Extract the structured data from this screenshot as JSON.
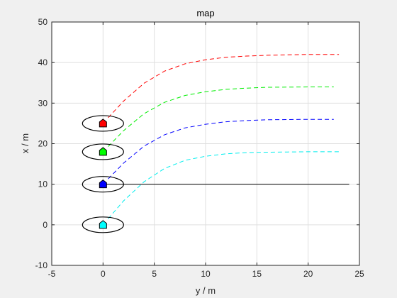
{
  "chart_data": {
    "type": "line",
    "title": "map",
    "xlabel": "y / m",
    "ylabel": "x / m",
    "xlim": [
      -5,
      25
    ],
    "ylim": [
      -10,
      50
    ],
    "xticks": [
      -5,
      0,
      5,
      10,
      15,
      20,
      25
    ],
    "yticks": [
      -10,
      0,
      10,
      20,
      30,
      40,
      50
    ],
    "grid": true,
    "reference_line": {
      "x": [
        0,
        24
      ],
      "y": [
        10,
        10
      ],
      "color": "#000000"
    },
    "series": [
      {
        "color": "#ff0000",
        "style": "dashed",
        "start": 25,
        "end": 42,
        "x_end": 23,
        "x": [
          0.5,
          2,
          4,
          6,
          8,
          10,
          12,
          14,
          16,
          18,
          20,
          22,
          23
        ],
        "y": [
          26.4,
          30.5,
          34.9,
          37.9,
          39.7,
          40.7,
          41.3,
          41.6,
          41.8,
          41.9,
          42.0,
          42.0,
          42.0
        ]
      },
      {
        "color": "#00ee00",
        "style": "dashed",
        "start": 18,
        "end": 34,
        "x_end": 22.5,
        "x": [
          0.5,
          2,
          4,
          6,
          8,
          10,
          12,
          14,
          16,
          18,
          20,
          22.5
        ],
        "y": [
          19.3,
          23.2,
          27.4,
          30.2,
          31.9,
          32.8,
          33.4,
          33.7,
          33.9,
          33.95,
          34.0,
          34.0
        ]
      },
      {
        "color": "#0000ff",
        "style": "dashed",
        "start": 10,
        "end": 26,
        "x_end": 22.5,
        "x": [
          0.5,
          2,
          4,
          6,
          8,
          10,
          12,
          14,
          16,
          18,
          20,
          22.5
        ],
        "y": [
          11.3,
          15.2,
          19.4,
          22.2,
          23.9,
          24.8,
          25.4,
          25.7,
          25.9,
          25.95,
          26.0,
          26.0
        ]
      },
      {
        "color": "#00eeee",
        "style": "dashed",
        "start": 0,
        "end": 18,
        "x_end": 23,
        "x": [
          0.5,
          2,
          4,
          6,
          8,
          10,
          12,
          14,
          16,
          18,
          20,
          23
        ],
        "y": [
          1.5,
          5.9,
          10.6,
          13.9,
          15.9,
          16.9,
          17.5,
          17.8,
          17.9,
          17.95,
          18.0,
          18.0
        ]
      }
    ],
    "vehicles": [
      {
        "x": 0,
        "y": 25,
        "color": "#ff0000"
      },
      {
        "x": 0,
        "y": 18,
        "color": "#00ff00"
      },
      {
        "x": 0,
        "y": 10,
        "color": "#0000ff"
      },
      {
        "x": 0,
        "y": 0,
        "color": "#00ffff"
      }
    ]
  }
}
